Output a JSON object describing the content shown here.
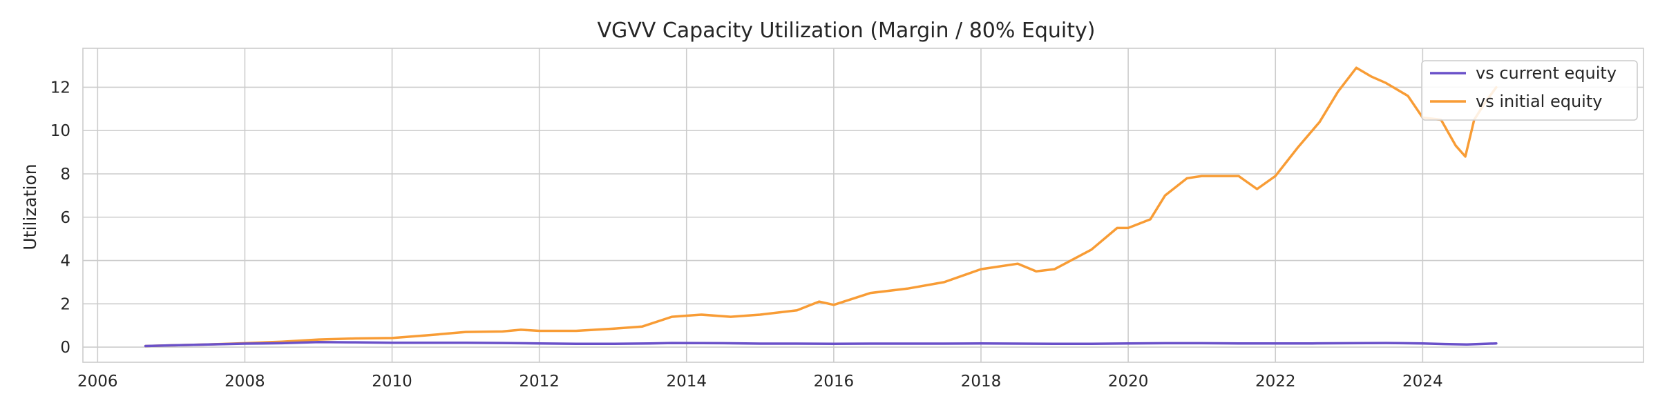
{
  "chart_data": {
    "type": "line",
    "title": "VGVV Capacity Utilization (Margin / 80% Equity)",
    "xlabel": "",
    "ylabel": "Utilization",
    "xlim": [
      2005.8,
      2027.0
    ],
    "ylim": [
      -0.7,
      13.8
    ],
    "xticks": [
      2006,
      2008,
      2010,
      2012,
      2014,
      2016,
      2018,
      2020,
      2022,
      2024
    ],
    "yticks": [
      0,
      2,
      4,
      6,
      8,
      10,
      12
    ],
    "grid": true,
    "legend_position": "top-right",
    "series": [
      {
        "name": "vs current equity",
        "color": "#6a51c9",
        "x": [
          2006.65,
          2007.0,
          2007.5,
          2008.0,
          2008.5,
          2009.0,
          2009.5,
          2010.0,
          2010.5,
          2011.0,
          2011.5,
          2012.0,
          2012.5,
          2013.0,
          2013.5,
          2013.8,
          2014.5,
          2015.0,
          2015.5,
          2016.0,
          2016.5,
          2017.0,
          2017.5,
          2018.0,
          2018.5,
          2019.0,
          2019.5,
          2020.0,
          2020.5,
          2021.0,
          2021.5,
          2022.0,
          2022.5,
          2023.0,
          2023.5,
          2024.0,
          2024.3,
          2024.6,
          2025.0
        ],
        "y": [
          0.05,
          0.08,
          0.12,
          0.16,
          0.18,
          0.23,
          0.22,
          0.2,
          0.2,
          0.2,
          0.19,
          0.17,
          0.15,
          0.15,
          0.17,
          0.19,
          0.18,
          0.16,
          0.16,
          0.15,
          0.16,
          0.16,
          0.16,
          0.17,
          0.16,
          0.15,
          0.15,
          0.17,
          0.18,
          0.18,
          0.17,
          0.17,
          0.17,
          0.18,
          0.19,
          0.17,
          0.14,
          0.12,
          0.17
        ]
      },
      {
        "name": "vs initial equity",
        "color": "#f89c35",
        "x": [
          2006.65,
          2007.0,
          2007.5,
          2008.0,
          2008.5,
          2009.0,
          2009.5,
          2010.0,
          2010.5,
          2011.0,
          2011.5,
          2011.75,
          2012.0,
          2012.5,
          2013.0,
          2013.4,
          2013.8,
          2014.2,
          2014.6,
          2015.0,
          2015.5,
          2015.8,
          2016.0,
          2016.5,
          2017.0,
          2017.5,
          2018.0,
          2018.5,
          2018.75,
          2019.0,
          2019.5,
          2019.85,
          2020.0,
          2020.3,
          2020.5,
          2020.8,
          2021.0,
          2021.5,
          2021.75,
          2022.0,
          2022.3,
          2022.6,
          2022.85,
          2023.1,
          2023.3,
          2023.5,
          2023.8,
          2024.0,
          2024.25,
          2024.45,
          2024.58,
          2024.7,
          2024.85,
          2025.0
        ],
        "y": [
          0.05,
          0.08,
          0.12,
          0.18,
          0.25,
          0.35,
          0.4,
          0.42,
          0.55,
          0.7,
          0.72,
          0.8,
          0.75,
          0.75,
          0.85,
          0.95,
          1.4,
          1.5,
          1.4,
          1.5,
          1.7,
          2.1,
          1.95,
          2.5,
          2.7,
          3.0,
          3.6,
          3.85,
          3.5,
          3.6,
          4.5,
          5.5,
          5.5,
          5.9,
          7.0,
          7.8,
          7.9,
          7.9,
          7.3,
          7.9,
          9.2,
          10.4,
          11.8,
          12.9,
          12.5,
          12.2,
          11.6,
          10.6,
          10.5,
          9.3,
          8.8,
          10.5,
          11.3,
          12.0
        ]
      }
    ]
  }
}
